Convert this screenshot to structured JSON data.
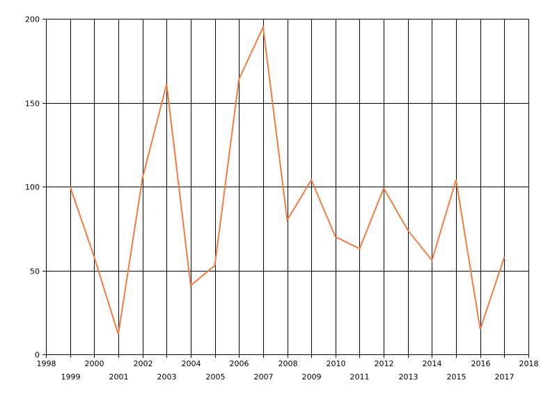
{
  "chart_data": {
    "type": "line",
    "title": "",
    "xlabel": "",
    "ylabel": "",
    "xlim": [
      1998,
      2018
    ],
    "ylim": [
      0,
      200
    ],
    "x_ticks": [
      1998,
      1999,
      2000,
      2001,
      2002,
      2003,
      2004,
      2005,
      2006,
      2007,
      2008,
      2009,
      2010,
      2011,
      2012,
      2013,
      2014,
      2015,
      2016,
      2017,
      2018
    ],
    "y_ticks": [
      0,
      50,
      100,
      150,
      200
    ],
    "grid": true,
    "legend": "none",
    "series": [
      {
        "color": "#f47b3f",
        "x": [
          1999,
          2000,
          2001,
          2002,
          2003,
          2004,
          2005,
          2006,
          2007,
          2008,
          2009,
          2010,
          2011,
          2012,
          2013,
          2014,
          2015,
          2016,
          2017
        ],
        "values": [
          100,
          58,
          12,
          105,
          161,
          41,
          53,
          164,
          195,
          80,
          104,
          70,
          63,
          99,
          74,
          56,
          104,
          15,
          58
        ]
      }
    ]
  }
}
